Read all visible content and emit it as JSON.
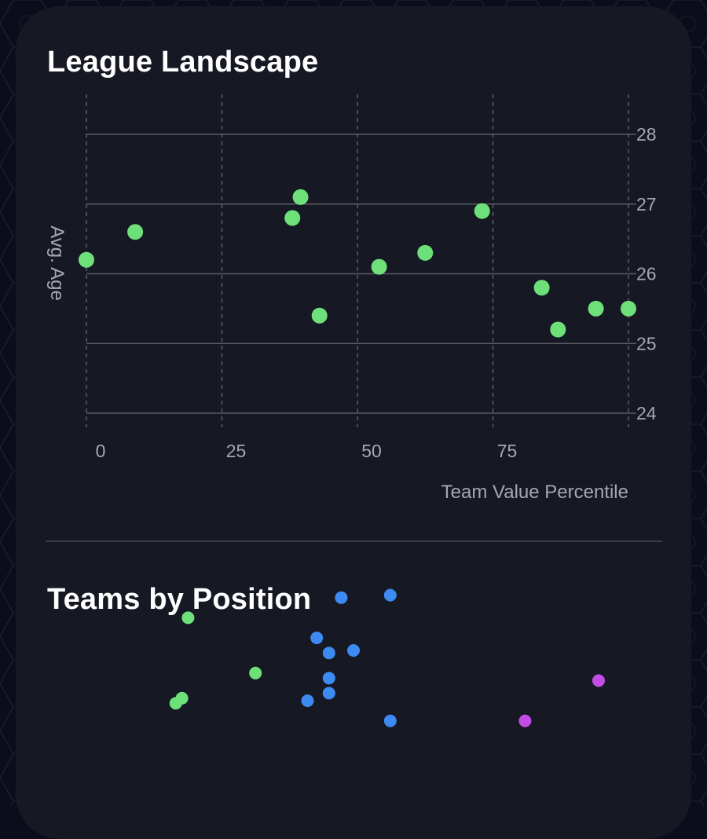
{
  "sections": {
    "landscape_title": "League Landscape",
    "position_title": "Teams by Position"
  },
  "colors": {
    "background": "#0b0e1a",
    "card": "#161823",
    "gridline": "#5a5d68",
    "green": "#6ee07a",
    "blue": "#3d8bf2",
    "purple": "#c44ce6"
  },
  "chart_data": [
    {
      "type": "scatter",
      "title": "League Landscape",
      "xlabel": "Team Value Percentile",
      "ylabel": "Avg. Age",
      "xlim": [
        0,
        100
      ],
      "ylim": [
        24,
        28
      ],
      "xticks": [
        "0",
        "25",
        "50",
        "75"
      ],
      "yticks": [
        "24",
        "25",
        "26",
        "27",
        "28"
      ],
      "grid": true,
      "y_axis_side": "right",
      "series": [
        {
          "color": "#6ee07a",
          "points": [
            {
              "x": 0,
              "y": 26.2
            },
            {
              "x": 9,
              "y": 26.6
            },
            {
              "x": 38,
              "y": 26.8
            },
            {
              "x": 39.5,
              "y": 27.1
            },
            {
              "x": 43,
              "y": 25.4
            },
            {
              "x": 54,
              "y": 26.1
            },
            {
              "x": 62.5,
              "y": 26.3
            },
            {
              "x": 73,
              "y": 26.9
            },
            {
              "x": 84,
              "y": 25.8
            },
            {
              "x": 87,
              "y": 25.2
            },
            {
              "x": 94,
              "y": 25.5
            },
            {
              "x": 100,
              "y": 25.5
            }
          ]
        }
      ]
    },
    {
      "type": "scatter",
      "title": "Teams by Position",
      "xlim": [
        0,
        100
      ],
      "ylim": [
        0,
        100
      ],
      "grid": false,
      "series": [
        {
          "color": "#6ee07a",
          "points": [
            {
              "x": 23,
              "y": 88
            },
            {
              "x": 34,
              "y": 66
            },
            {
              "x": 22,
              "y": 56
            },
            {
              "x": 21,
              "y": 54
            }
          ]
        },
        {
          "color": "#3d8bf2",
          "points": [
            {
              "x": 48,
              "y": 96
            },
            {
              "x": 56,
              "y": 97
            },
            {
              "x": 44,
              "y": 80
            },
            {
              "x": 46,
              "y": 74
            },
            {
              "x": 50,
              "y": 75
            },
            {
              "x": 46,
              "y": 64
            },
            {
              "x": 46,
              "y": 58
            },
            {
              "x": 42.5,
              "y": 55
            },
            {
              "x": 56,
              "y": 47
            }
          ]
        },
        {
          "color": "#c44ce6",
          "points": [
            {
              "x": 90,
              "y": 63
            },
            {
              "x": 78,
              "y": 47
            }
          ]
        }
      ]
    }
  ]
}
